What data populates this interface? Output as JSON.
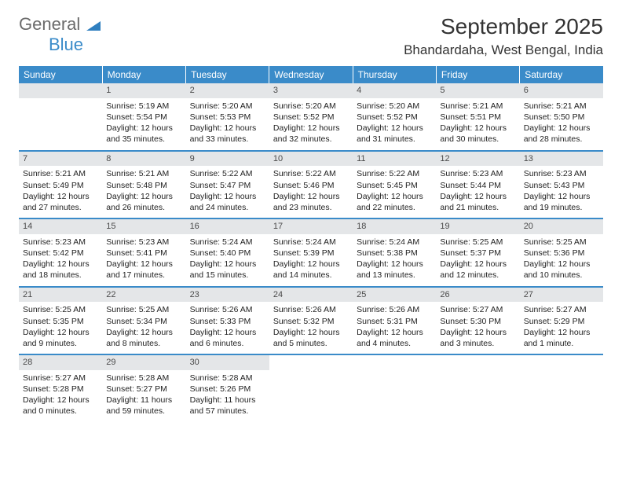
{
  "brand": {
    "part1": "General",
    "part2": "Blue"
  },
  "title": "September 2025",
  "location": "Bhandardaha, West Bengal, India",
  "colors": {
    "header_bg": "#3a8bc9",
    "header_text": "#ffffff",
    "daynum_bg": "#e4e6e8",
    "daynum_text": "#4a4a4a",
    "border": "#3a8bc9",
    "body_text": "#222222",
    "logo_gray": "#6b6b6b",
    "logo_blue": "#3a8bc9"
  },
  "weekdays": [
    "Sunday",
    "Monday",
    "Tuesday",
    "Wednesday",
    "Thursday",
    "Friday",
    "Saturday"
  ],
  "layout": {
    "first_weekday_index": 1,
    "days_in_month": 30,
    "rows": 5
  },
  "days": {
    "1": {
      "sunrise": "Sunrise: 5:19 AM",
      "sunset": "Sunset: 5:54 PM",
      "daylight1": "Daylight: 12 hours",
      "daylight2": "and 35 minutes."
    },
    "2": {
      "sunrise": "Sunrise: 5:20 AM",
      "sunset": "Sunset: 5:53 PM",
      "daylight1": "Daylight: 12 hours",
      "daylight2": "and 33 minutes."
    },
    "3": {
      "sunrise": "Sunrise: 5:20 AM",
      "sunset": "Sunset: 5:52 PM",
      "daylight1": "Daylight: 12 hours",
      "daylight2": "and 32 minutes."
    },
    "4": {
      "sunrise": "Sunrise: 5:20 AM",
      "sunset": "Sunset: 5:52 PM",
      "daylight1": "Daylight: 12 hours",
      "daylight2": "and 31 minutes."
    },
    "5": {
      "sunrise": "Sunrise: 5:21 AM",
      "sunset": "Sunset: 5:51 PM",
      "daylight1": "Daylight: 12 hours",
      "daylight2": "and 30 minutes."
    },
    "6": {
      "sunrise": "Sunrise: 5:21 AM",
      "sunset": "Sunset: 5:50 PM",
      "daylight1": "Daylight: 12 hours",
      "daylight2": "and 28 minutes."
    },
    "7": {
      "sunrise": "Sunrise: 5:21 AM",
      "sunset": "Sunset: 5:49 PM",
      "daylight1": "Daylight: 12 hours",
      "daylight2": "and 27 minutes."
    },
    "8": {
      "sunrise": "Sunrise: 5:21 AM",
      "sunset": "Sunset: 5:48 PM",
      "daylight1": "Daylight: 12 hours",
      "daylight2": "and 26 minutes."
    },
    "9": {
      "sunrise": "Sunrise: 5:22 AM",
      "sunset": "Sunset: 5:47 PM",
      "daylight1": "Daylight: 12 hours",
      "daylight2": "and 24 minutes."
    },
    "10": {
      "sunrise": "Sunrise: 5:22 AM",
      "sunset": "Sunset: 5:46 PM",
      "daylight1": "Daylight: 12 hours",
      "daylight2": "and 23 minutes."
    },
    "11": {
      "sunrise": "Sunrise: 5:22 AM",
      "sunset": "Sunset: 5:45 PM",
      "daylight1": "Daylight: 12 hours",
      "daylight2": "and 22 minutes."
    },
    "12": {
      "sunrise": "Sunrise: 5:23 AM",
      "sunset": "Sunset: 5:44 PM",
      "daylight1": "Daylight: 12 hours",
      "daylight2": "and 21 minutes."
    },
    "13": {
      "sunrise": "Sunrise: 5:23 AM",
      "sunset": "Sunset: 5:43 PM",
      "daylight1": "Daylight: 12 hours",
      "daylight2": "and 19 minutes."
    },
    "14": {
      "sunrise": "Sunrise: 5:23 AM",
      "sunset": "Sunset: 5:42 PM",
      "daylight1": "Daylight: 12 hours",
      "daylight2": "and 18 minutes."
    },
    "15": {
      "sunrise": "Sunrise: 5:23 AM",
      "sunset": "Sunset: 5:41 PM",
      "daylight1": "Daylight: 12 hours",
      "daylight2": "and 17 minutes."
    },
    "16": {
      "sunrise": "Sunrise: 5:24 AM",
      "sunset": "Sunset: 5:40 PM",
      "daylight1": "Daylight: 12 hours",
      "daylight2": "and 15 minutes."
    },
    "17": {
      "sunrise": "Sunrise: 5:24 AM",
      "sunset": "Sunset: 5:39 PM",
      "daylight1": "Daylight: 12 hours",
      "daylight2": "and 14 minutes."
    },
    "18": {
      "sunrise": "Sunrise: 5:24 AM",
      "sunset": "Sunset: 5:38 PM",
      "daylight1": "Daylight: 12 hours",
      "daylight2": "and 13 minutes."
    },
    "19": {
      "sunrise": "Sunrise: 5:25 AM",
      "sunset": "Sunset: 5:37 PM",
      "daylight1": "Daylight: 12 hours",
      "daylight2": "and 12 minutes."
    },
    "20": {
      "sunrise": "Sunrise: 5:25 AM",
      "sunset": "Sunset: 5:36 PM",
      "daylight1": "Daylight: 12 hours",
      "daylight2": "and 10 minutes."
    },
    "21": {
      "sunrise": "Sunrise: 5:25 AM",
      "sunset": "Sunset: 5:35 PM",
      "daylight1": "Daylight: 12 hours",
      "daylight2": "and 9 minutes."
    },
    "22": {
      "sunrise": "Sunrise: 5:25 AM",
      "sunset": "Sunset: 5:34 PM",
      "daylight1": "Daylight: 12 hours",
      "daylight2": "and 8 minutes."
    },
    "23": {
      "sunrise": "Sunrise: 5:26 AM",
      "sunset": "Sunset: 5:33 PM",
      "daylight1": "Daylight: 12 hours",
      "daylight2": "and 6 minutes."
    },
    "24": {
      "sunrise": "Sunrise: 5:26 AM",
      "sunset": "Sunset: 5:32 PM",
      "daylight1": "Daylight: 12 hours",
      "daylight2": "and 5 minutes."
    },
    "25": {
      "sunrise": "Sunrise: 5:26 AM",
      "sunset": "Sunset: 5:31 PM",
      "daylight1": "Daylight: 12 hours",
      "daylight2": "and 4 minutes."
    },
    "26": {
      "sunrise": "Sunrise: 5:27 AM",
      "sunset": "Sunset: 5:30 PM",
      "daylight1": "Daylight: 12 hours",
      "daylight2": "and 3 minutes."
    },
    "27": {
      "sunrise": "Sunrise: 5:27 AM",
      "sunset": "Sunset: 5:29 PM",
      "daylight1": "Daylight: 12 hours",
      "daylight2": "and 1 minute."
    },
    "28": {
      "sunrise": "Sunrise: 5:27 AM",
      "sunset": "Sunset: 5:28 PM",
      "daylight1": "Daylight: 12 hours",
      "daylight2": "and 0 minutes."
    },
    "29": {
      "sunrise": "Sunrise: 5:28 AM",
      "sunset": "Sunset: 5:27 PM",
      "daylight1": "Daylight: 11 hours",
      "daylight2": "and 59 minutes."
    },
    "30": {
      "sunrise": "Sunrise: 5:28 AM",
      "sunset": "Sunset: 5:26 PM",
      "daylight1": "Daylight: 11 hours",
      "daylight2": "and 57 minutes."
    }
  }
}
